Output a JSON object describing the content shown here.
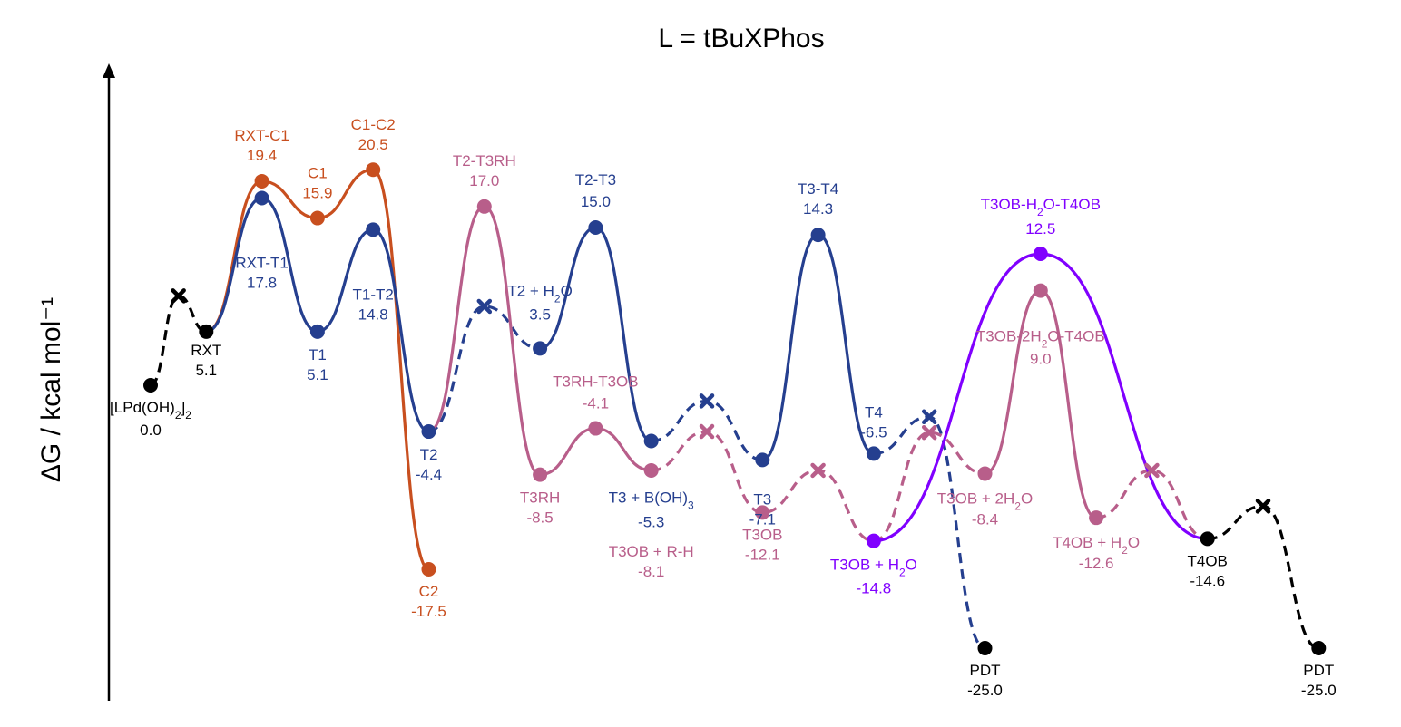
{
  "chart_data": {
    "type": "line",
    "title": "L = tBuXPhos",
    "ylabel": "ΔG / kcal mol⁻¹",
    "ylim": [
      -27,
      29
    ],
    "colors": {
      "black": "#000000",
      "orange": "#c84f1f",
      "blue": "#253f8f",
      "pink": "#b85e8a",
      "purple": "#8000ff"
    },
    "points": [
      {
        "id": "start",
        "x": 0,
        "y": 0.0,
        "marker": "circle",
        "color": "black",
        "name": "[LPd(OH)2]2",
        "value": "0.0"
      },
      {
        "id": "rxt",
        "x": 1,
        "y": 5.1,
        "marker": "circle",
        "color": "black",
        "name": "RXT",
        "value": "5.1"
      },
      {
        "id": "rxtc1",
        "x": 2,
        "y": 19.4,
        "marker": "circle",
        "color": "orange",
        "name": "RXT-C1",
        "value": "19.4"
      },
      {
        "id": "c1",
        "x": 3,
        "y": 15.9,
        "marker": "circle",
        "color": "orange",
        "name": "C1",
        "value": "15.9"
      },
      {
        "id": "c1c2",
        "x": 4,
        "y": 20.5,
        "marker": "circle",
        "color": "orange",
        "name": "C1-C2",
        "value": "20.5"
      },
      {
        "id": "c2",
        "x": 5,
        "y": -17.5,
        "marker": "circle",
        "color": "orange",
        "name": "C2",
        "value": "-17.5"
      },
      {
        "id": "rxtt1",
        "x": 2,
        "y": 17.8,
        "marker": "circle",
        "color": "blue",
        "name": "RXT-T1",
        "value": "17.8"
      },
      {
        "id": "t1",
        "x": 3,
        "y": 5.1,
        "marker": "circle",
        "color": "blue",
        "name": "T1",
        "value": "5.1"
      },
      {
        "id": "t1t2",
        "x": 4,
        "y": 14.8,
        "marker": "circle",
        "color": "blue",
        "name": "T1-T2",
        "value": "14.8"
      },
      {
        "id": "t2",
        "x": 5,
        "y": -4.4,
        "marker": "circle",
        "color": "blue",
        "name": "T2",
        "value": "-4.4"
      },
      {
        "id": "t2h2o",
        "x": 7,
        "y": 3.5,
        "marker": "circle",
        "color": "blue",
        "name": "T2 + H2O",
        "value": "3.5"
      },
      {
        "id": "t2t3",
        "x": 8,
        "y": 15.0,
        "marker": "circle",
        "color": "blue",
        "name": "T2-T3",
        "value": "15.0"
      },
      {
        "id": "t3boh",
        "x": 9,
        "y": -5.3,
        "marker": "circle",
        "color": "blue",
        "name": "T3 + B(OH)3",
        "value": "-5.3"
      },
      {
        "id": "t3",
        "x": 11,
        "y": -7.1,
        "marker": "circle",
        "color": "blue",
        "name": "T3",
        "value": "-7.1"
      },
      {
        "id": "t3t4",
        "x": 12,
        "y": 14.3,
        "marker": "circle",
        "color": "blue",
        "name": "T3-T4",
        "value": "14.3"
      },
      {
        "id": "t4",
        "x": 13,
        "y": -6.5,
        "marker": "circle",
        "color": "blue",
        "name": "T4",
        "value": "-6.5"
      },
      {
        "id": "pdt1",
        "x": 15,
        "y": -25.0,
        "marker": "circle",
        "color": "black",
        "name": "PDT",
        "value": "-25.0"
      },
      {
        "id": "t2t3rh",
        "x": 6,
        "y": 17.0,
        "marker": "circle",
        "color": "pink",
        "name": "T2-T3RH",
        "value": "17.0"
      },
      {
        "id": "t3rh",
        "x": 7,
        "y": -8.5,
        "marker": "circle",
        "color": "pink",
        "name": "T3RH",
        "value": "-8.5"
      },
      {
        "id": "t3rht3ob",
        "x": 8,
        "y": -4.1,
        "marker": "circle",
        "color": "pink",
        "name": "T3RH-T3OB",
        "value": "-4.1"
      },
      {
        "id": "t3obrh",
        "x": 9,
        "y": -8.1,
        "marker": "circle",
        "color": "pink",
        "name": "T3OB + R-H",
        "value": "-8.1"
      },
      {
        "id": "t3ob",
        "x": 11,
        "y": -12.1,
        "marker": "circle",
        "color": "pink",
        "name": "T3OB",
        "value": "-12.1"
      },
      {
        "id": "t3obh2o",
        "x": 13,
        "y": -14.8,
        "marker": "circle",
        "color": "purple",
        "name": "T3OB + H2O",
        "value": "-14.8"
      },
      {
        "id": "t3ob2h2o",
        "x": 15,
        "y": -8.4,
        "marker": "circle",
        "color": "pink",
        "name": "T3OB + 2H2O",
        "value": "-8.4"
      },
      {
        "id": "ts2h2o",
        "x": 16,
        "y": 9.0,
        "marker": "circle",
        "color": "pink",
        "name": "T3OB-2H2O-T4OB",
        "value": "9.0"
      },
      {
        "id": "tsh2o",
        "x": 16,
        "y": 12.5,
        "marker": "circle",
        "color": "purple",
        "name": "T3OB-H2O-T4OB",
        "value": "12.5"
      },
      {
        "id": "t4obh2o",
        "x": 17,
        "y": -12.6,
        "marker": "circle",
        "color": "pink",
        "name": "T4OB + H2O",
        "value": "-12.6"
      },
      {
        "id": "t4ob",
        "x": 19,
        "y": -14.6,
        "marker": "circle",
        "color": "black",
        "name": "T4OB",
        "value": "-14.6"
      },
      {
        "id": "pdt2",
        "x": 21,
        "y": -25.0,
        "marker": "circle",
        "color": "black",
        "name": "PDT",
        "value": "-25.0"
      },
      {
        "id": "xk1",
        "x": 0.5,
        "y": 8.5,
        "marker": "x",
        "color": "black"
      },
      {
        "id": "xb1",
        "x": 6,
        "y": 7.5,
        "marker": "x",
        "color": "blue"
      },
      {
        "id": "xb2",
        "x": 10,
        "y": -1.5,
        "marker": "x",
        "color": "blue"
      },
      {
        "id": "xb3",
        "x": 14,
        "y": -3.0,
        "marker": "x",
        "color": "blue"
      },
      {
        "id": "xp1",
        "x": 10,
        "y": -4.4,
        "marker": "x",
        "color": "pink"
      },
      {
        "id": "xp2",
        "x": 12,
        "y": -8.1,
        "marker": "x",
        "color": "pink"
      },
      {
        "id": "xp3",
        "x": 14,
        "y": -4.5,
        "marker": "x",
        "color": "pink"
      },
      {
        "id": "xp4",
        "x": 18,
        "y": -8.1,
        "marker": "x",
        "color": "pink"
      },
      {
        "id": "xk2",
        "x": 20,
        "y": -11.5,
        "marker": "x",
        "color": "black"
      }
    ],
    "series": [
      {
        "color": "black",
        "dashed": true,
        "path": [
          "start",
          "xk1",
          "rxt"
        ]
      },
      {
        "color": "orange",
        "dashed": false,
        "path": [
          "rxt",
          "rxtc1",
          "c1",
          "c1c2",
          "c2"
        ]
      },
      {
        "color": "blue",
        "dashed": false,
        "path": [
          "rxt",
          "rxtt1",
          "t1",
          "t1t2",
          "t2"
        ]
      },
      {
        "color": "blue",
        "dashed": true,
        "path": [
          "t2",
          "xb1",
          "t2h2o"
        ]
      },
      {
        "color": "blue",
        "dashed": false,
        "path": [
          "t2h2o",
          "t2t3",
          "t3boh"
        ]
      },
      {
        "color": "blue",
        "dashed": true,
        "path": [
          "t3boh",
          "xb2",
          "t3"
        ]
      },
      {
        "color": "blue",
        "dashed": false,
        "path": [
          "t3",
          "t3t4",
          "t4"
        ]
      },
      {
        "color": "blue",
        "dashed": true,
        "path": [
          "t4",
          "xb3",
          "pdt1"
        ]
      },
      {
        "color": "pink",
        "dashed": false,
        "path": [
          "t2",
          "t2t3rh",
          "t3rh",
          "t3rht3ob",
          "t3obrh"
        ]
      },
      {
        "color": "pink",
        "dashed": true,
        "path": [
          "t3obrh",
          "xp1",
          "t3ob",
          "xp2",
          "t3obh2o",
          "xp3",
          "t3ob2h2o"
        ]
      },
      {
        "color": "pink",
        "dashed": false,
        "path": [
          "t3ob2h2o",
          "ts2h2o",
          "t4obh2o"
        ]
      },
      {
        "color": "pink",
        "dashed": true,
        "path": [
          "t4obh2o",
          "xp4",
          "t4ob"
        ]
      },
      {
        "color": "purple",
        "dashed": false,
        "path": [
          "t3obh2o",
          "tsh2o",
          "t4ob"
        ]
      },
      {
        "color": "black",
        "dashed": true,
        "path": [
          "t4ob",
          "xk2",
          "pdt2"
        ]
      }
    ]
  }
}
